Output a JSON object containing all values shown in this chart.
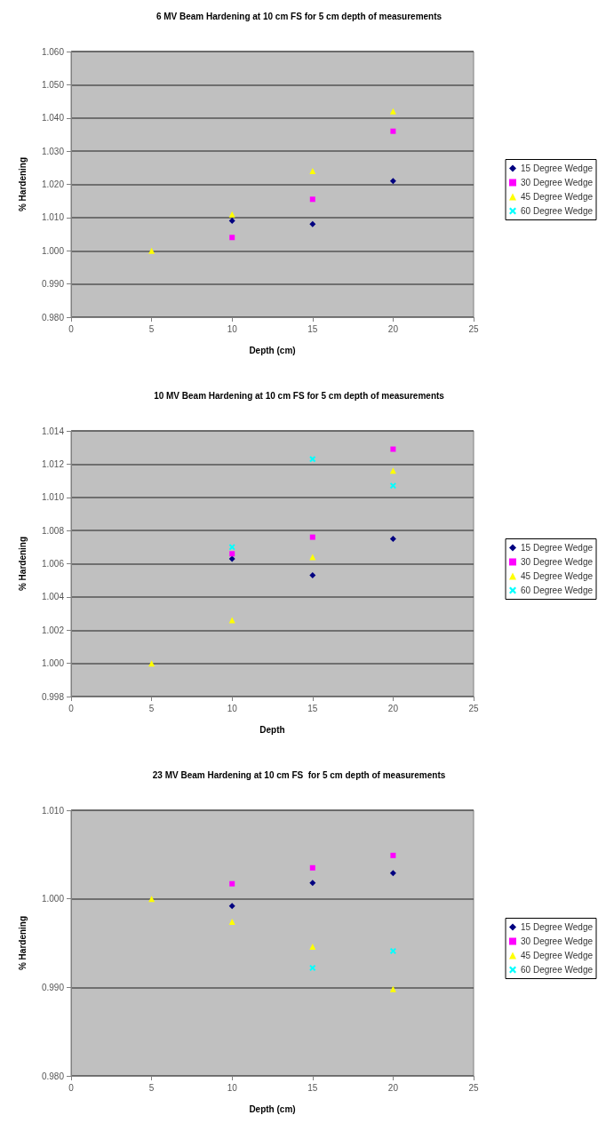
{
  "chart_data": [
    {
      "type": "scatter",
      "title": "6 MV Beam Hardening at 10 cm FS for 5 cm depth of measurements",
      "xlabel": "Depth (cm)",
      "ylabel": "% Hardening",
      "x": [
        5,
        10,
        15,
        20
      ],
      "xlim": [
        0,
        25
      ],
      "xticks": [
        0,
        5,
        10,
        15,
        20,
        25
      ],
      "ylim": [
        0.98,
        1.06
      ],
      "yticks": [
        {
          "value": 0.98,
          "label": "0.980"
        },
        {
          "value": 0.99,
          "label": "0.990"
        },
        {
          "value": 1.0,
          "label": "1.000"
        },
        {
          "value": 1.01,
          "label": "1.010"
        },
        {
          "value": 1.02,
          "label": "1.020"
        },
        {
          "value": 1.03,
          "label": "1.030"
        },
        {
          "value": 1.04,
          "label": "1.040"
        },
        {
          "value": 1.05,
          "label": "1.050"
        },
        {
          "value": 1.06,
          "label": "1.060"
        }
      ],
      "grid": "y",
      "legend": "right",
      "series": [
        {
          "name": "15 Degree Wedge",
          "color": "#000080",
          "marker": "diamond",
          "values": [
            null,
            1.009,
            1.008,
            1.021
          ]
        },
        {
          "name": "30 Degree Wedge",
          "color": "#ff00ff",
          "marker": "square",
          "values": [
            null,
            1.004,
            1.0155,
            1.036
          ]
        },
        {
          "name": "45 Degree Wedge",
          "color": "#ffff00",
          "marker": "triangle",
          "values": [
            1.0,
            1.011,
            1.024,
            1.042
          ]
        },
        {
          "name": "60 Degree Wedge",
          "color": "#00ffff",
          "marker": "cross",
          "values": [
            null,
            null,
            null,
            null
          ]
        }
      ]
    },
    {
      "type": "scatter",
      "title": "10 MV Beam Hardening at 10 cm FS for 5 cm depth of measurements",
      "xlabel": "Depth",
      "ylabel": "% Hardening",
      "x": [
        5,
        10,
        15,
        20
      ],
      "xlim": [
        0,
        25
      ],
      "xticks": [
        0,
        5,
        10,
        15,
        20,
        25
      ],
      "ylim": [
        0.998,
        1.014
      ],
      "yticks": [
        {
          "value": 0.998,
          "label": "0.998"
        },
        {
          "value": 1.0,
          "label": "1.000"
        },
        {
          "value": 1.002,
          "label": "1.002"
        },
        {
          "value": 1.004,
          "label": "1.004"
        },
        {
          "value": 1.006,
          "label": "1.006"
        },
        {
          "value": 1.008,
          "label": "1.008"
        },
        {
          "value": 1.01,
          "label": "1.010"
        },
        {
          "value": 1.012,
          "label": "1.012"
        },
        {
          "value": 1.014,
          "label": "1.014"
        }
      ],
      "grid": "y",
      "legend": "right",
      "series": [
        {
          "name": "15 Degree Wedge",
          "color": "#000080",
          "marker": "diamond",
          "values": [
            null,
            1.0063,
            1.0053,
            1.0075
          ]
        },
        {
          "name": "30 Degree Wedge",
          "color": "#ff00ff",
          "marker": "square",
          "values": [
            null,
            1.0066,
            1.0076,
            1.0129
          ]
        },
        {
          "name": "45 Degree Wedge",
          "color": "#ffff00",
          "marker": "triangle",
          "values": [
            1.0,
            1.0026,
            1.0064,
            1.0116
          ]
        },
        {
          "name": "60 Degree Wedge",
          "color": "#00ffff",
          "marker": "cross",
          "values": [
            null,
            1.007,
            1.0123,
            1.0107
          ]
        }
      ]
    },
    {
      "type": "scatter",
      "title": "23 MV Beam Hardening at 10 cm FS  for 5 cm depth of measurements",
      "xlabel": "Depth (cm)",
      "ylabel": "% Hardening",
      "x": [
        5,
        10,
        15,
        20
      ],
      "xlim": [
        0,
        25
      ],
      "xticks": [
        0,
        5,
        10,
        15,
        20,
        25
      ],
      "ylim": [
        0.98,
        1.01
      ],
      "yticks": [
        {
          "value": 0.98,
          "label": "0.980"
        },
        {
          "value": 0.99,
          "label": "0.990"
        },
        {
          "value": 1.0,
          "label": "1.000"
        },
        {
          "value": 1.01,
          "label": "1.010"
        }
      ],
      "grid": "y",
      "legend": "right",
      "series": [
        {
          "name": "15 Degree Wedge",
          "color": "#000080",
          "marker": "diamond",
          "values": [
            null,
            0.9992,
            1.0018,
            1.0029
          ]
        },
        {
          "name": "30 Degree Wedge",
          "color": "#ff00ff",
          "marker": "square",
          "values": [
            null,
            1.0017,
            1.0035,
            1.0049
          ]
        },
        {
          "name": "45 Degree Wedge",
          "color": "#ffff00",
          "marker": "triangle",
          "values": [
            1.0,
            0.9974,
            0.9946,
            0.9898
          ]
        },
        {
          "name": "60 Degree Wedge",
          "color": "#00ffff",
          "marker": "cross",
          "values": [
            null,
            null,
            0.9922,
            0.9941
          ]
        }
      ]
    }
  ]
}
